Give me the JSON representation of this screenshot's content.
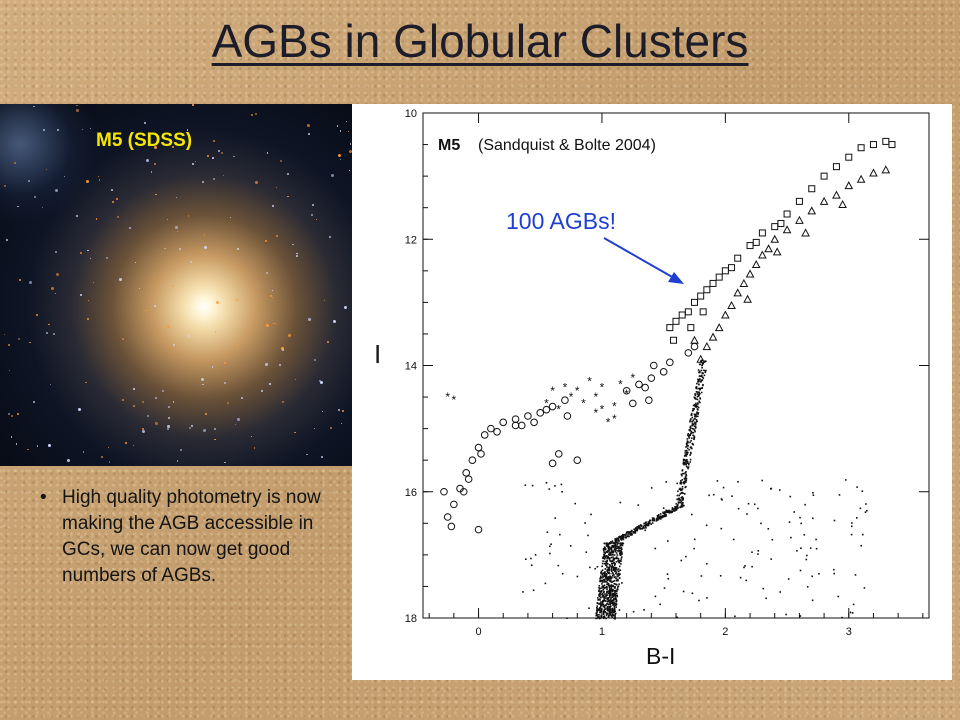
{
  "slide": {
    "title": "AGBs in Globular Clusters",
    "bullet_text": "High quality photometry is now making the AGB accessible in GCs, we can now get good numbers of AGBs."
  },
  "photo": {
    "label": "M5 (SDSS)",
    "label_color": "#f5e600"
  },
  "chart_data": {
    "type": "scatter",
    "title_bold": "M5",
    "title_rest": "(Sandquist & Bolte 2004)",
    "xlabel": "B-I",
    "ylabel": "I",
    "xlim": [
      -0.45,
      3.65
    ],
    "ylim": [
      18,
      10
    ],
    "x_ticks": [
      "0",
      "1",
      "2",
      "3"
    ],
    "y_ticks": [
      "10",
      "12",
      "14",
      "16",
      "18"
    ],
    "annotation": {
      "text": "100 AGBs!",
      "color": "#1f3fd0",
      "points_to": {
        "x": 1.65,
        "y": 13.3
      }
    },
    "series": [
      {
        "marker": "circle",
        "points": [
          [
            -0.25,
            16.4
          ],
          [
            -0.2,
            16.2
          ],
          [
            -0.15,
            15.95
          ],
          [
            -0.1,
            15.7
          ],
          [
            -0.05,
            15.5
          ],
          [
            0.0,
            15.3
          ],
          [
            0.05,
            15.1
          ],
          [
            0.1,
            15.0
          ],
          [
            0.2,
            14.9
          ],
          [
            0.3,
            14.85
          ],
          [
            0.4,
            14.8
          ],
          [
            0.5,
            14.75
          ],
          [
            0.6,
            14.65
          ],
          [
            0.7,
            14.55
          ],
          [
            -0.22,
            16.55
          ],
          [
            -0.12,
            16.0
          ],
          [
            0.02,
            15.4
          ],
          [
            0.15,
            15.05
          ],
          [
            0.35,
            14.95
          ],
          [
            0.55,
            14.7
          ],
          [
            0.65,
            15.4
          ],
          [
            0.8,
            15.5
          ],
          [
            0.72,
            14.8
          ],
          [
            0.0,
            16.6
          ],
          [
            -0.28,
            16.0
          ],
          [
            0.3,
            14.95
          ],
          [
            1.2,
            14.4
          ],
          [
            1.3,
            14.3
          ],
          [
            1.4,
            14.2
          ],
          [
            1.5,
            14.1
          ],
          [
            1.55,
            13.95
          ],
          [
            1.35,
            14.35
          ],
          [
            1.42,
            14.0
          ],
          [
            1.7,
            13.8
          ],
          [
            1.75,
            13.7
          ],
          [
            1.25,
            14.6
          ],
          [
            1.38,
            14.55
          ],
          [
            -0.08,
            15.8
          ],
          [
            0.45,
            14.9
          ],
          [
            0.6,
            15.55
          ]
        ]
      },
      {
        "marker": "star",
        "points": [
          [
            -0.25,
            14.5
          ],
          [
            -0.2,
            14.55
          ],
          [
            0.55,
            14.6
          ],
          [
            0.6,
            14.4
          ],
          [
            0.7,
            14.35
          ],
          [
            0.75,
            14.5
          ],
          [
            0.8,
            14.4
          ],
          [
            0.85,
            14.6
          ],
          [
            0.95,
            14.5
          ],
          [
            1.0,
            14.7
          ],
          [
            1.0,
            14.35
          ],
          [
            1.1,
            14.65
          ],
          [
            1.05,
            14.9
          ],
          [
            1.15,
            14.3
          ],
          [
            1.2,
            14.45
          ],
          [
            1.25,
            14.2
          ],
          [
            0.9,
            14.25
          ],
          [
            1.1,
            14.85
          ],
          [
            0.95,
            14.75
          ],
          [
            0.65,
            14.7
          ]
        ]
      },
      {
        "marker": "square",
        "points": [
          [
            1.55,
            13.4
          ],
          [
            1.6,
            13.3
          ],
          [
            1.65,
            13.2
          ],
          [
            1.7,
            13.15
          ],
          [
            1.75,
            13.0
          ],
          [
            1.8,
            12.9
          ],
          [
            1.85,
            12.8
          ],
          [
            1.9,
            12.7
          ],
          [
            1.95,
            12.6
          ],
          [
            2.0,
            12.5
          ],
          [
            2.1,
            12.3
          ],
          [
            2.2,
            12.1
          ],
          [
            2.3,
            11.9
          ],
          [
            2.4,
            11.8
          ],
          [
            2.5,
            11.6
          ],
          [
            2.6,
            11.4
          ],
          [
            2.7,
            11.2
          ],
          [
            2.8,
            11.0
          ],
          [
            2.9,
            10.85
          ],
          [
            3.0,
            10.7
          ],
          [
            3.1,
            10.55
          ],
          [
            3.2,
            10.5
          ],
          [
            3.3,
            10.45
          ],
          [
            3.35,
            10.5
          ],
          [
            1.72,
            13.4
          ],
          [
            1.82,
            13.15
          ],
          [
            2.05,
            12.45
          ],
          [
            2.25,
            12.05
          ],
          [
            2.45,
            11.75
          ],
          [
            1.58,
            13.6
          ]
        ]
      },
      {
        "marker": "triangle",
        "points": [
          [
            1.8,
            13.9
          ],
          [
            1.85,
            13.7
          ],
          [
            1.9,
            13.55
          ],
          [
            1.95,
            13.4
          ],
          [
            2.0,
            13.2
          ],
          [
            2.05,
            13.05
          ],
          [
            2.1,
            12.85
          ],
          [
            2.15,
            12.7
          ],
          [
            2.2,
            12.55
          ],
          [
            2.25,
            12.4
          ],
          [
            2.3,
            12.25
          ],
          [
            2.35,
            12.15
          ],
          [
            2.4,
            12.0
          ],
          [
            2.5,
            11.85
          ],
          [
            2.6,
            11.7
          ],
          [
            2.7,
            11.55
          ],
          [
            2.8,
            11.4
          ],
          [
            2.9,
            11.3
          ],
          [
            3.0,
            11.15
          ],
          [
            3.1,
            11.05
          ],
          [
            3.2,
            10.95
          ],
          [
            3.3,
            10.9
          ],
          [
            1.75,
            13.6
          ],
          [
            2.18,
            12.95
          ],
          [
            2.42,
            12.2
          ],
          [
            2.65,
            11.9
          ],
          [
            2.95,
            11.45
          ]
        ]
      }
    ]
  }
}
